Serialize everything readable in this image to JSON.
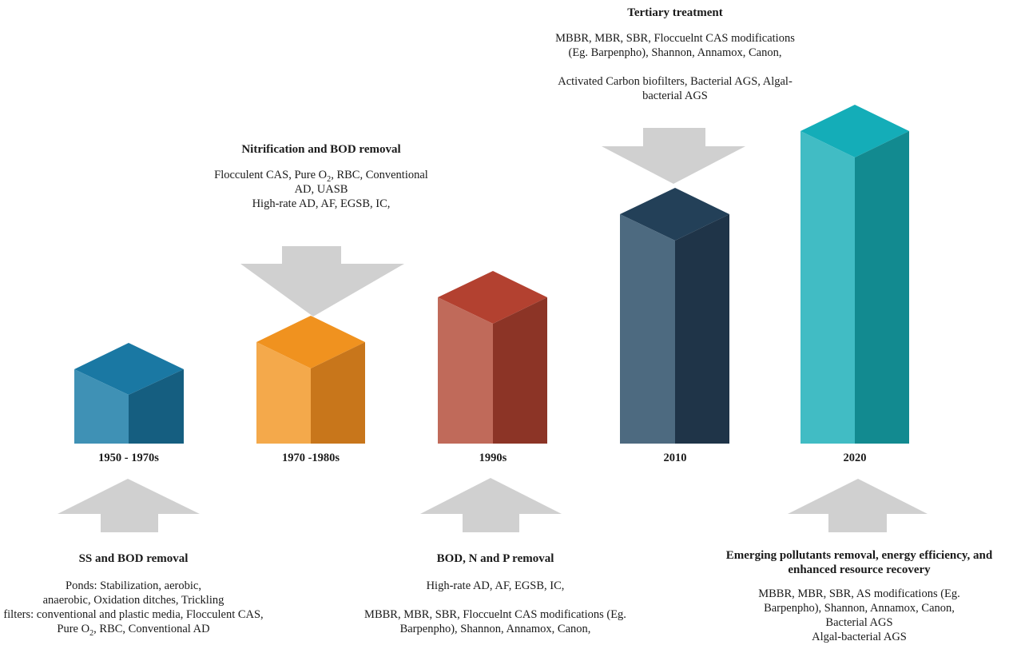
{
  "eras": [
    {
      "label": "1950 - 1970s",
      "colors": {
        "top": "#1a78a3",
        "left": "#3f91b5",
        "right": "#155e80"
      }
    },
    {
      "label": "1970 -1980s",
      "colors": {
        "top": "#f0921f",
        "left": "#f4a94b",
        "right": "#c8761b"
      }
    },
    {
      "label": "1990s",
      "colors": {
        "top": "#b34130",
        "left": "#c06a5a",
        "right": "#8c3426"
      }
    },
    {
      "label": "2010",
      "colors": {
        "top": "#234058",
        "left": "#4d6a80",
        "right": "#1f3448"
      }
    },
    {
      "label": "2020",
      "colors": {
        "top": "#14adb8",
        "left": "#41bcc4",
        "right": "#128a90"
      }
    }
  ],
  "arrow_color": "#d0d0d0",
  "callouts": {
    "ss_bod": {
      "heading": "SS and BOD removal",
      "lines": [
        "Ponds: Stabilization, aerobic,",
        "anaerobic, Oxidation ditches, Trickling",
        "filters: conventional and plastic media, Flocculent CAS,"
      ],
      "last_pre": "Pure O",
      "last_sub": "2",
      "last_post": ", RBC, Conventional AD"
    },
    "nitrification": {
      "heading": "Nitrification and BOD removal",
      "line1_pre": "Flocculent CAS, Pure O",
      "line1_sub": "2",
      "line1_post": ", RBC, Conventional",
      "line2": "AD, UASB",
      "line3": "High-rate AD, AF, EGSB, IC,"
    },
    "bod_np": {
      "heading": "BOD, N and P removal",
      "line1": "High-rate AD, AF, EGSB, IC,",
      "line2": "MBBR, MBR, SBR, Floccuelnt CAS modifications (Eg.",
      "line3": "Barpenpho), Shannon, Annamox, Canon,"
    },
    "tertiary": {
      "heading": "Tertiary treatment",
      "line1": "MBBR, MBR, SBR, Floccuelnt CAS modifications",
      "line2": "(Eg. Barpenpho), Shannon, Annamox, Canon,",
      "line3": "Activated Carbon biofilters, Bacterial AGS, Algal-",
      "line4": "bacterial AGS"
    },
    "emerging": {
      "heading1": "Emerging pollutants removal, energy efficiency, and",
      "heading2": "enhanced resource recovery",
      "line1": "MBBR, MBR, SBR, AS modifications (Eg.",
      "line2": "Barpenpho), Shannon, Annamox, Canon,",
      "line3": "Bacterial AGS",
      "line4": "Algal-bacterial AGS"
    }
  }
}
